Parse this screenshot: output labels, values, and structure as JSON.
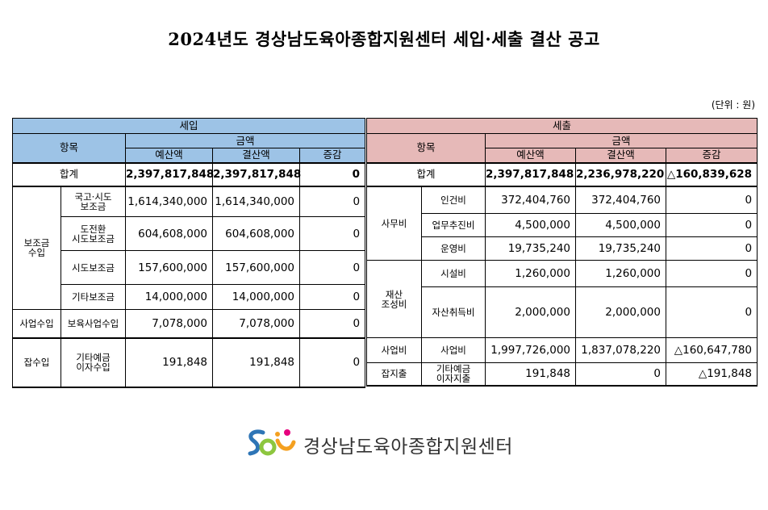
{
  "title": "2024년도 경상남도육아종합지원센터 세입·세출 결산 공고",
  "unit": "(단위 : 원)",
  "headers": {
    "income": "세입",
    "expense": "세출",
    "item": "항목",
    "amount": "금액",
    "budget": "예산액",
    "settled": "결산액",
    "change": "증감"
  },
  "income": {
    "total": {
      "label": "합계",
      "budget": "2,397,817,848",
      "settled": "2,397,817,848",
      "change": "0"
    },
    "groups": {
      "subsidy": "보조금\n수입",
      "business": "사업수입",
      "misc": "잡수입"
    },
    "rows": [
      {
        "label": "국고·시도\n보조금",
        "budget": "1,614,340,000",
        "settled": "1,614,340,000",
        "change": "0"
      },
      {
        "label": "도전환\n시도보조금",
        "budget": "604,608,000",
        "settled": "604,608,000",
        "change": "0"
      },
      {
        "label": "시도보조금",
        "budget": "157,600,000",
        "settled": "157,600,000",
        "change": "0"
      },
      {
        "label": "기타보조금",
        "budget": "14,000,000",
        "settled": "14,000,000",
        "change": "0"
      },
      {
        "label": "보육사업수입",
        "budget": "7,078,000",
        "settled": "7,078,000",
        "change": "0"
      },
      {
        "label": "기타예금\n이자수입",
        "budget": "191,848",
        "settled": "191,848",
        "change": "0"
      }
    ]
  },
  "expense": {
    "total": {
      "label": "합계",
      "budget": "2,397,817,848",
      "settled": "2,236,978,220",
      "change": "△160,839,628"
    },
    "groups": {
      "office": "사무비",
      "property": "재산\n조성비",
      "project": "사업비",
      "misc": "잡지출"
    },
    "rows": [
      {
        "label": "인건비",
        "budget": "372,404,760",
        "settled": "372,404,760",
        "change": "0"
      },
      {
        "label": "업무추진비",
        "budget": "4,500,000",
        "settled": "4,500,000",
        "change": "0"
      },
      {
        "label": "운영비",
        "budget": "19,735,240",
        "settled": "19,735,240",
        "change": "0"
      },
      {
        "label": "시설비",
        "budget": "1,260,000",
        "settled": "1,260,000",
        "change": "0"
      },
      {
        "label": "자산취득비",
        "budget": "2,000,000",
        "settled": "2,000,000",
        "change": "0"
      },
      {
        "label": "사업비",
        "budget": "1,997,726,000",
        "settled": "1,837,078,220",
        "change": "△160,647,780"
      },
      {
        "label": "기타예금\n이자지출",
        "budget": "191,848",
        "settled": "0",
        "change": "△191,848"
      }
    ]
  },
  "logo": {
    "name": "경상남도육아종합지원센터",
    "colors": [
      "#2e75b6",
      "#f4a020",
      "#8dc63f",
      "#e6007e"
    ]
  }
}
